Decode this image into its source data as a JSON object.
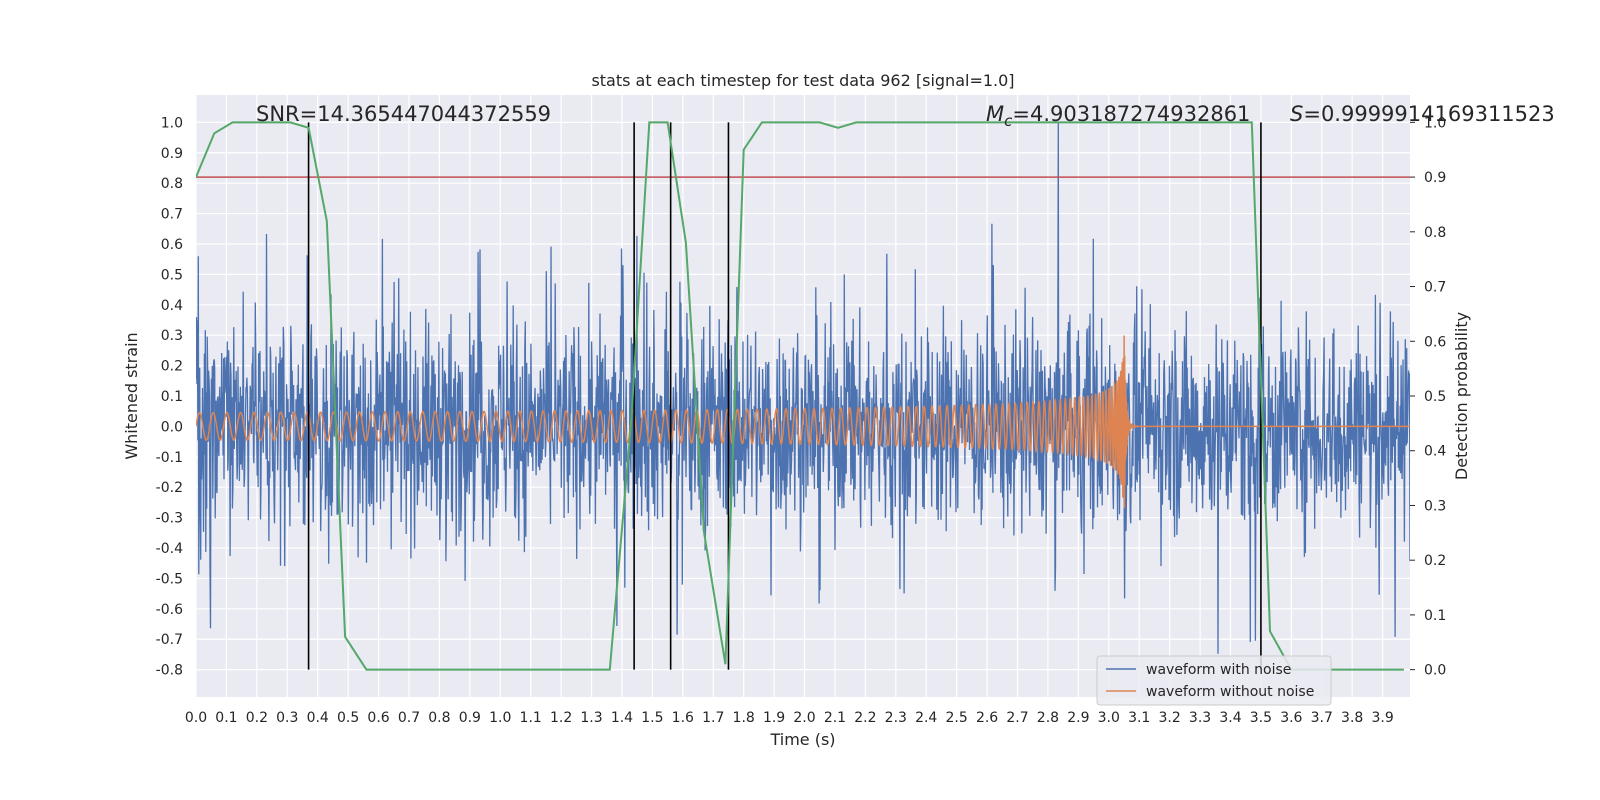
{
  "chart_data": {
    "type": "line",
    "title": "stats at each timestep for test data 962 [signal=1.0]",
    "xlabel": "Time (s)",
    "ylabel": "Whitened strain",
    "y2label": "Detection probability",
    "xlim": [
      0.0,
      3.99
    ],
    "ylim": [
      -0.89,
      1.09
    ],
    "y2lim": [
      -0.05,
      1.05
    ],
    "grid": true,
    "x_ticks": [
      "0.0",
      "0.1",
      "0.2",
      "0.3",
      "0.4",
      "0.5",
      "0.6",
      "0.7",
      "0.8",
      "0.9",
      "1.0",
      "1.1",
      "1.2",
      "1.3",
      "1.4",
      "1.5",
      "1.6",
      "1.7",
      "1.8",
      "1.9",
      "2.0",
      "2.1",
      "2.2",
      "2.3",
      "2.4",
      "2.5",
      "2.6",
      "2.7",
      "2.8",
      "2.9",
      "3.0",
      "3.1",
      "3.2",
      "3.3",
      "3.4",
      "3.5",
      "3.6",
      "3.7",
      "3.8",
      "3.9"
    ],
    "y_ticks": [
      "-0.8",
      "-0.7",
      "-0.6",
      "-0.5",
      "-0.4",
      "-0.3",
      "-0.2",
      "-0.1",
      "0.0",
      "0.1",
      "0.2",
      "0.3",
      "0.4",
      "0.5",
      "0.6",
      "0.7",
      "0.8",
      "0.9",
      "1.0"
    ],
    "y2_ticks": [
      "0.0",
      "0.1",
      "0.2",
      "0.3",
      "0.4",
      "0.5",
      "0.6",
      "0.7",
      "0.8",
      "0.9",
      "1.0"
    ],
    "annotations": {
      "snr": "SNR=14.365447044372559",
      "mc_symbol": "M",
      "mc_sub": "c",
      "mc_value": "=4.903187274932861",
      "s_symbol": "S",
      "s_value": "=0.9999914169311523"
    },
    "threshold": 0.9,
    "vertical_lines": [
      0.37,
      1.44,
      1.56,
      1.75,
      3.5
    ],
    "series": [
      {
        "name": "waveform with noise",
        "color": "#4c72b0",
        "axis": "left",
        "noise_envelope": [
          -0.8,
          1.0
        ]
      },
      {
        "name": "waveform without noise",
        "color": "#dd8452",
        "axis": "left",
        "merger_time": 3.05,
        "peak_amplitude": 0.34
      },
      {
        "name": "detection probability",
        "color": "#55a868",
        "axis": "right",
        "x": [
          0.0,
          0.06,
          0.12,
          0.19,
          0.25,
          0.31,
          0.37,
          0.43,
          0.49,
          0.56,
          0.62,
          0.68,
          0.74,
          0.81,
          0.87,
          0.93,
          0.99,
          1.05,
          1.12,
          1.18,
          1.24,
          1.3,
          1.36,
          1.43,
          1.49,
          1.55,
          1.61,
          1.67,
          1.74,
          1.8,
          1.86,
          1.92,
          1.98,
          2.05,
          2.11,
          2.17,
          2.23,
          2.29,
          2.36,
          2.42,
          2.48,
          2.54,
          2.6,
          2.67,
          2.73,
          2.79,
          2.85,
          2.91,
          2.98,
          3.04,
          3.1,
          3.16,
          3.22,
          3.29,
          3.35,
          3.41,
          3.47,
          3.53,
          3.6,
          3.66,
          3.72,
          3.78,
          3.84,
          3.91,
          3.97
        ],
        "y": [
          0.9,
          0.98,
          1.0,
          1.0,
          1.0,
          1.0,
          0.99,
          0.82,
          0.06,
          0.0,
          0.0,
          0.0,
          0.0,
          0.0,
          0.0,
          0.0,
          0.0,
          0.0,
          0.0,
          0.0,
          0.0,
          0.0,
          0.0,
          0.45,
          1.0,
          1.0,
          0.78,
          0.25,
          0.01,
          0.95,
          1.0,
          1.0,
          1.0,
          1.0,
          0.99,
          1.0,
          1.0,
          1.0,
          1.0,
          1.0,
          1.0,
          1.0,
          1.0,
          1.0,
          1.0,
          1.0,
          1.0,
          1.0,
          1.0,
          1.0,
          1.0,
          1.0,
          1.0,
          1.0,
          1.0,
          1.0,
          1.0,
          0.07,
          0.0,
          0.0,
          0.0,
          0.0,
          0.0,
          0.0,
          0.0
        ]
      }
    ],
    "legend": {
      "position": "lower-right",
      "entries": [
        "waveform with noise",
        "waveform without noise"
      ]
    },
    "colors": {
      "background": "#eaeaf2",
      "grid": "#ffffff",
      "threshold": "#c44e52",
      "vline": "#000000"
    }
  }
}
